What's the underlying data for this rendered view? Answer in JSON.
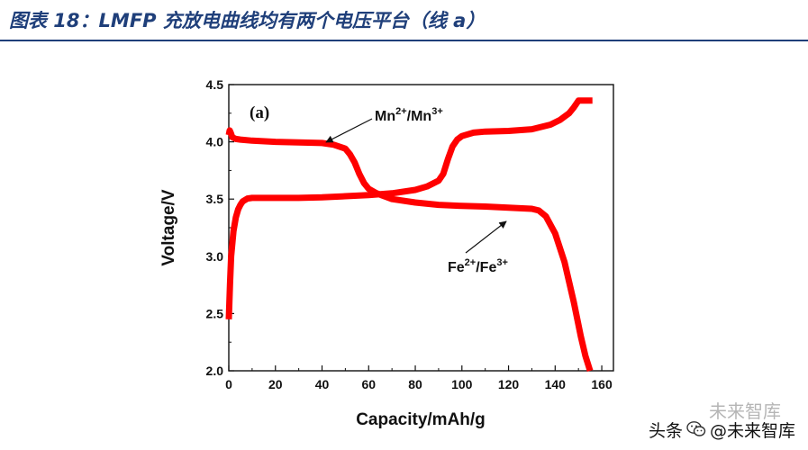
{
  "header": {
    "title": "图表 18：LMFP 充放电曲线均有两个电压平台（线 a）"
  },
  "chart_data": {
    "type": "line",
    "panel_label": "(a)",
    "xlabel": "Capacity/mAh/g",
    "ylabel": "Voltage/V",
    "xlim": [
      0,
      165
    ],
    "ylim": [
      2.0,
      4.5
    ],
    "xticks": [
      "0",
      "20",
      "40",
      "60",
      "80",
      "100",
      "120",
      "140",
      "160"
    ],
    "yticks": [
      "2.0",
      "2.5",
      "3.0",
      "3.5",
      "4.0",
      "4.5"
    ],
    "grid": false,
    "line_color": "#ff0000",
    "series": [
      {
        "curve": "charge",
        "x": [
          0,
          0.5,
          1,
          2,
          3,
          4,
          5,
          6,
          8,
          10,
          15,
          20,
          30,
          40,
          50,
          60,
          70,
          80,
          85,
          90,
          92,
          94,
          96,
          98,
          100,
          105,
          110,
          120,
          130,
          138,
          142,
          146,
          148,
          150,
          156
        ],
        "y": [
          2.45,
          2.75,
          3.0,
          3.22,
          3.34,
          3.41,
          3.45,
          3.48,
          3.505,
          3.51,
          3.51,
          3.51,
          3.51,
          3.515,
          3.525,
          3.535,
          3.55,
          3.58,
          3.61,
          3.66,
          3.72,
          3.85,
          3.96,
          4.02,
          4.05,
          4.08,
          4.09,
          4.095,
          4.11,
          4.15,
          4.19,
          4.25,
          4.3,
          4.36,
          4.36
        ]
      },
      {
        "curve": "discharge",
        "x": [
          0,
          0.4,
          0.8,
          1.5,
          3,
          5,
          10,
          20,
          30,
          40,
          45,
          50,
          52,
          54,
          56,
          58,
          60,
          63,
          66,
          70,
          80,
          90,
          100,
          110,
          120,
          125,
          130,
          133,
          136,
          140,
          144,
          148,
          151,
          153,
          155
        ],
        "y": [
          4.06,
          4.1,
          4.08,
          4.04,
          4.025,
          4.02,
          4.01,
          4.0,
          3.995,
          3.99,
          3.975,
          3.94,
          3.89,
          3.82,
          3.72,
          3.64,
          3.59,
          3.555,
          3.53,
          3.5,
          3.47,
          3.45,
          3.44,
          3.435,
          3.425,
          3.42,
          3.415,
          3.4,
          3.35,
          3.2,
          2.95,
          2.6,
          2.3,
          2.13,
          2.0
        ]
      }
    ],
    "annotations": [
      {
        "base": "Mn",
        "charge1": "2+",
        "sep": "/Mn",
        "charge2": "3+"
      },
      {
        "base": "Fe",
        "charge1": "2+",
        "sep": "/Fe",
        "charge2": "3+"
      }
    ]
  },
  "watermark": {
    "line1": "未来智库",
    "prefix": "头条",
    "handle": "@未来智库",
    "icon": "wechat-icon"
  }
}
